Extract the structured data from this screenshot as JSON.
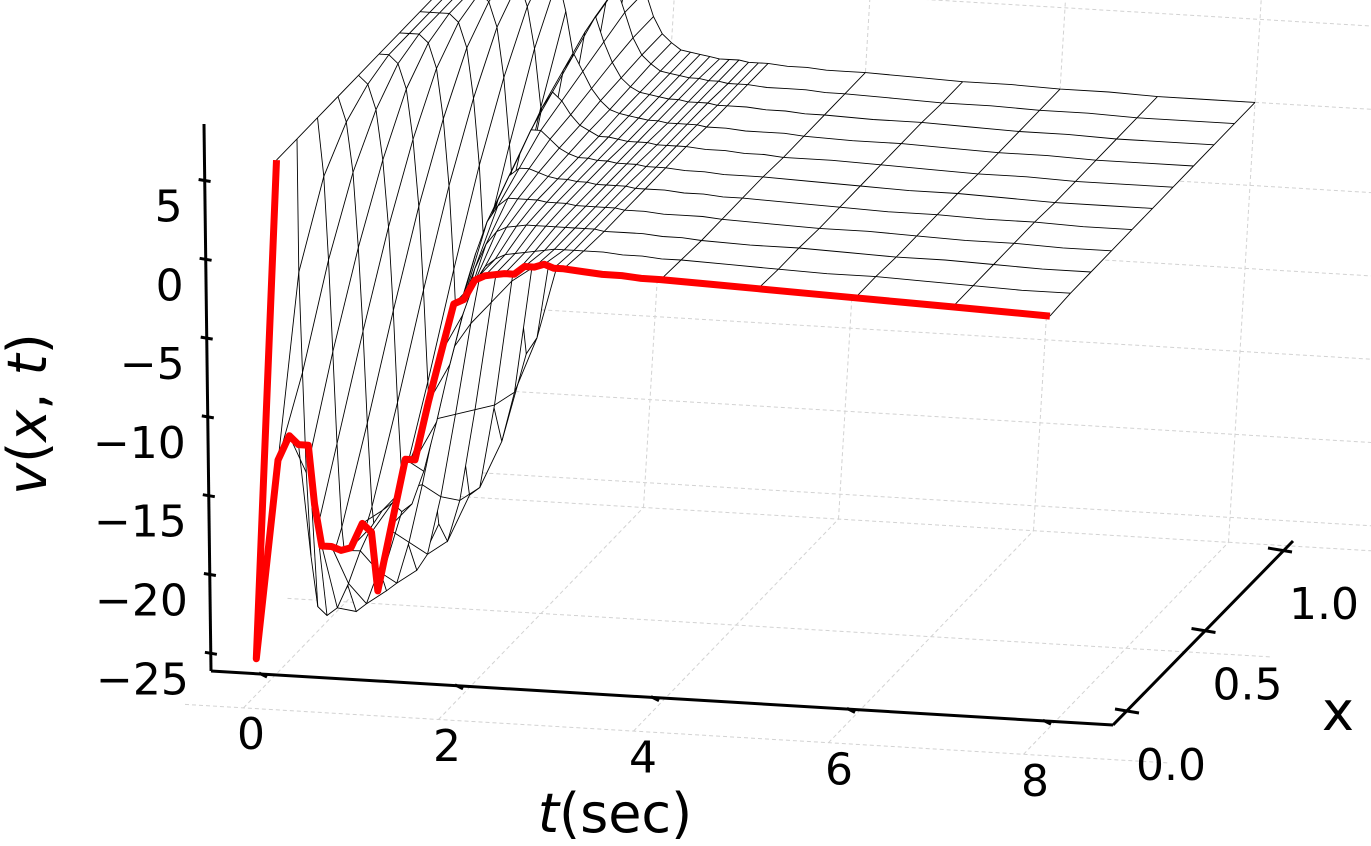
{
  "chart_data": {
    "type": "surface",
    "xlabel_parts": [
      "t",
      "(sec)"
    ],
    "ylabel": "x",
    "zlabel_parts": [
      "v",
      "(",
      "x",
      ", ",
      "t",
      ")"
    ],
    "t_range": [
      0,
      8
    ],
    "x_range": [
      0,
      1
    ],
    "v_range": [
      -25,
      7
    ],
    "t_ticks": [
      0,
      2,
      4,
      6,
      8
    ],
    "t_tick_labels": [
      "0",
      "2",
      "4",
      "6",
      "8"
    ],
    "x_ticks": [
      0,
      0.5,
      1.0
    ],
    "x_tick_labels": [
      "0.0",
      "0.5",
      "1.0"
    ],
    "v_ticks": [
      -25,
      -20,
      -15,
      -10,
      -5,
      0,
      5
    ],
    "v_tick_labels": [
      "−25",
      "−20",
      "−15",
      "−10",
      "−5",
      "0",
      "5"
    ],
    "grid": true,
    "surface_color": "#000000",
    "highlight_color": "#ff0000",
    "highlight_series": {
      "x": 0,
      "t": [
        0.0,
        0.1,
        0.2,
        0.3,
        0.4,
        0.5,
        0.6,
        0.7,
        0.8,
        0.9,
        1.0,
        1.1,
        1.2,
        1.3,
        1.4,
        1.5,
        1.6,
        1.7,
        1.8,
        1.9,
        2.0,
        2.1,
        2.2,
        2.3,
        2.4,
        2.5,
        2.6,
        2.7,
        2.8,
        2.9,
        3.0,
        3.2,
        3.4,
        3.6,
        3.8,
        4.0,
        4.5,
        5.0,
        5.5,
        6.0,
        6.5,
        7.0,
        7.5,
        8.0
      ],
      "v": [
        6.5,
        -23.5,
        -11.5,
        -10.0,
        -10.5,
        -10.5,
        -14.0,
        -16.5,
        -16.5,
        -16.7,
        -16.5,
        -15.0,
        -15.5,
        -19.0,
        -15.0,
        -11.0,
        -11.0,
        -7.5,
        -4.5,
        -1.5,
        -1.2,
        0.0,
        0.3,
        0.4,
        0.5,
        0.5,
        1.0,
        1.0,
        1.2,
        1.0,
        1.0,
        0.9,
        0.8,
        0.8,
        0.7,
        0.7,
        0.6,
        0.5,
        0.4,
        0.3,
        0.2,
        0.1,
        0.0,
        -0.1
      ]
    },
    "surface": {
      "t": [
        0.0,
        0.1,
        0.2,
        0.3,
        0.4,
        0.5,
        0.6,
        0.7,
        0.8,
        0.9,
        1.0,
        1.1,
        1.2,
        1.3,
        1.4,
        1.5,
        1.6,
        1.7,
        1.8,
        1.9,
        2.0,
        2.1,
        2.2,
        2.3,
        2.4,
        2.5,
        2.6,
        2.7,
        2.8,
        2.9,
        3.0,
        3.2,
        3.4,
        3.6,
        3.8,
        4.0,
        4.5,
        5.0,
        5.5,
        6.0,
        6.5,
        7.0,
        7.5,
        8.0
      ],
      "x": [
        0.0,
        0.1,
        0.2,
        0.3,
        0.4,
        0.5,
        0.6,
        0.7,
        0.8,
        0.9,
        1.0
      ],
      "rows": [
        [
          6.5,
          -23.5,
          -11.5,
          -10.0,
          -10.5,
          -10.5,
          -14.0,
          -16.5,
          -16.5,
          -16.7,
          -16.5,
          -15.0,
          -15.5,
          -19.0,
          -15.0,
          -11.0,
          -11.0,
          -7.5,
          -4.5,
          -1.5,
          -1.2,
          0.0,
          0.3,
          0.4,
          0.5,
          0.5,
          1.0,
          1.0,
          1.2,
          1.0,
          1.0,
          0.9,
          0.8,
          0.8,
          0.7,
          0.7,
          0.6,
          0.5,
          0.4,
          0.3,
          0.2,
          0.1,
          0.0,
          -0.1
        ],
        [
          6.5,
          -1.5,
          -7.5,
          -13.5,
          -18.5,
          -21.5,
          -22.0,
          -21.5,
          -20.0,
          -18.0,
          -16.5,
          -15.5,
          -15.0,
          -15.5,
          -15.0,
          -13.0,
          -10.0,
          -6.5,
          -3.5,
          -1.5,
          -0.5,
          0.0,
          0.3,
          0.4,
          0.5,
          0.6,
          0.7,
          0.8,
          0.8,
          0.8,
          0.8,
          0.8,
          0.7,
          0.7,
          0.6,
          0.6,
          0.5,
          0.4,
          0.3,
          0.3,
          0.2,
          0.1,
          0.0,
          0.0
        ],
        [
          6.5,
          3.0,
          -2.0,
          -7.5,
          -13.0,
          -18.0,
          -21.5,
          -23.0,
          -22.5,
          -20.5,
          -18.0,
          -15.5,
          -13.0,
          -11.0,
          -9.0,
          -6.5,
          -4.0,
          -2.0,
          -0.5,
          0.3,
          0.6,
          0.7,
          0.8,
          0.8,
          0.8,
          0.8,
          0.8,
          0.8,
          0.8,
          0.8,
          0.7,
          0.7,
          0.7,
          0.6,
          0.6,
          0.5,
          0.4,
          0.4,
          0.3,
          0.2,
          0.2,
          0.1,
          0.0,
          0.0
        ],
        [
          6.5,
          5.0,
          2.0,
          -2.5,
          -7.5,
          -13.0,
          -18.0,
          -21.5,
          -23.0,
          -22.5,
          -20.0,
          -16.5,
          -12.5,
          -8.5,
          -5.0,
          -2.5,
          -0.5,
          0.5,
          1.0,
          1.0,
          1.0,
          1.0,
          0.9,
          0.9,
          0.9,
          0.8,
          0.8,
          0.8,
          0.8,
          0.8,
          0.7,
          0.7,
          0.6,
          0.6,
          0.6,
          0.5,
          0.4,
          0.3,
          0.3,
          0.2,
          0.1,
          0.1,
          0.0,
          0.0
        ],
        [
          6.5,
          6.0,
          4.5,
          1.5,
          -2.5,
          -7.5,
          -13.0,
          -18.0,
          -21.5,
          -23.0,
          -22.0,
          -18.5,
          -13.5,
          -8.0,
          -3.5,
          -0.5,
          1.0,
          1.5,
          1.5,
          1.3,
          1.1,
          1.0,
          1.0,
          0.9,
          0.9,
          0.8,
          0.8,
          0.8,
          0.8,
          0.7,
          0.7,
          0.7,
          0.6,
          0.6,
          0.5,
          0.5,
          0.4,
          0.3,
          0.2,
          0.2,
          0.1,
          0.1,
          0.0,
          0.0
        ],
        [
          6.5,
          6.5,
          6.0,
          4.5,
          1.5,
          -2.5,
          -7.5,
          -13.0,
          -18.0,
          -21.5,
          -22.5,
          -20.0,
          -14.5,
          -8.0,
          -2.5,
          1.0,
          2.5,
          2.5,
          2.0,
          1.5,
          1.2,
          1.0,
          1.0,
          0.9,
          0.9,
          0.8,
          0.8,
          0.8,
          0.7,
          0.7,
          0.7,
          0.6,
          0.6,
          0.5,
          0.5,
          0.5,
          0.4,
          0.3,
          0.2,
          0.2,
          0.1,
          0.0,
          0.0,
          0.0
        ],
        [
          6.5,
          6.5,
          6.5,
          6.0,
          4.5,
          1.5,
          -2.5,
          -7.5,
          -13.0,
          -18.0,
          -21.0,
          -20.5,
          -15.5,
          -8.0,
          -1.5,
          2.5,
          3.5,
          3.0,
          2.2,
          1.6,
          1.3,
          1.0,
          1.0,
          0.9,
          0.8,
          0.8,
          0.8,
          0.7,
          0.7,
          0.7,
          0.7,
          0.6,
          0.6,
          0.5,
          0.5,
          0.4,
          0.4,
          0.3,
          0.2,
          0.1,
          0.1,
          0.0,
          0.0,
          0.0
        ],
        [
          6.5,
          6.5,
          6.5,
          6.5,
          6.0,
          4.5,
          1.5,
          -2.5,
          -7.5,
          -12.5,
          -17.0,
          -19.0,
          -16.0,
          -8.5,
          -1.0,
          3.5,
          4.5,
          3.5,
          2.5,
          1.8,
          1.3,
          1.1,
          1.0,
          0.9,
          0.8,
          0.8,
          0.7,
          0.7,
          0.7,
          0.7,
          0.6,
          0.6,
          0.5,
          0.5,
          0.5,
          0.4,
          0.3,
          0.3,
          0.2,
          0.1,
          0.1,
          0.0,
          0.0,
          0.0
        ],
        [
          6.5,
          6.5,
          6.5,
          6.5,
          6.5,
          6.0,
          4.5,
          1.5,
          -2.5,
          -7.0,
          -11.5,
          -15.0,
          -14.0,
          -8.0,
          -0.5,
          4.5,
          5.5,
          4.0,
          2.8,
          1.9,
          1.4,
          1.1,
          1.0,
          0.9,
          0.8,
          0.8,
          0.7,
          0.7,
          0.7,
          0.6,
          0.6,
          0.6,
          0.5,
          0.5,
          0.4,
          0.4,
          0.3,
          0.3,
          0.2,
          0.1,
          0.1,
          0.0,
          0.0,
          0.0
        ],
        [
          6.5,
          6.5,
          6.5,
          6.5,
          6.5,
          6.5,
          6.0,
          4.5,
          2.0,
          -1.5,
          -5.5,
          -9.0,
          -10.0,
          -6.5,
          0.0,
          5.0,
          6.0,
          4.5,
          3.0,
          2.0,
          1.5,
          1.1,
          1.0,
          0.9,
          0.8,
          0.8,
          0.7,
          0.7,
          0.6,
          0.6,
          0.6,
          0.5,
          0.5,
          0.5,
          0.4,
          0.4,
          0.3,
          0.2,
          0.2,
          0.1,
          0.1,
          0.0,
          0.0,
          0.0
        ],
        [
          6.5,
          6.5,
          6.5,
          6.5,
          6.5,
          6.5,
          6.5,
          6.0,
          5.0,
          3.0,
          0.5,
          -2.5,
          -4.5,
          -3.0,
          1.0,
          5.0,
          6.0,
          4.5,
          3.0,
          2.0,
          1.5,
          1.1,
          1.0,
          0.9,
          0.8,
          0.7,
          0.7,
          0.7,
          0.6,
          0.6,
          0.6,
          0.5,
          0.5,
          0.4,
          0.4,
          0.4,
          0.3,
          0.2,
          0.2,
          0.1,
          0.1,
          0.0,
          0.0,
          0.0
        ]
      ]
    }
  }
}
